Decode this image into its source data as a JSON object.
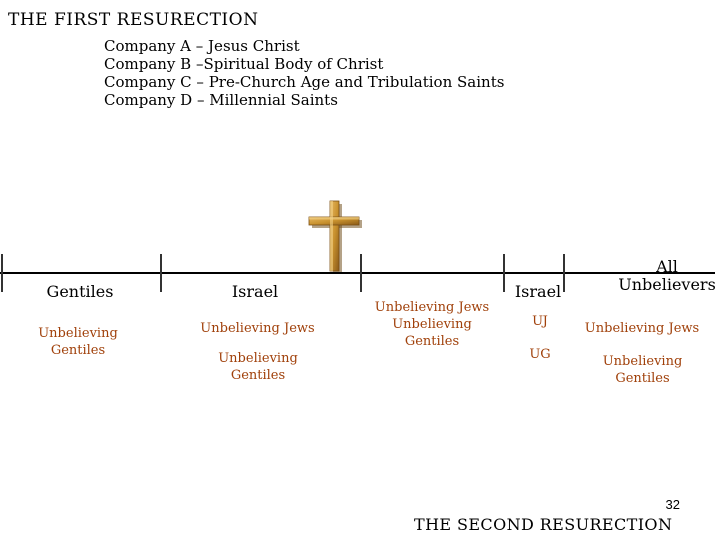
{
  "header": {
    "title": "THE FIRST RESURECTION",
    "companies": [
      "Company A – Jesus Christ",
      "Company B –Spiritual Body of Christ",
      "Company C – Pre-Church Age and Tribulation Saints",
      "Company D – Millennial Saints"
    ]
  },
  "timeline": {
    "groups": [
      {
        "heading": "Gentiles",
        "items": [
          "Unbelieving Gentiles"
        ]
      },
      {
        "heading": "Israel",
        "items": [
          "Unbelieving Jews",
          "Unbelieving Gentiles"
        ]
      },
      {
        "heading": "",
        "items": [
          "Unbelieving Jews Unbelieving Gentiles"
        ]
      },
      {
        "heading": "Israel",
        "items": [
          "UJ",
          "UG"
        ]
      },
      {
        "heading": "All Unbelievers",
        "items": [
          "Unbelieving Jews",
          "Unbelieving Gentiles"
        ]
      }
    ]
  },
  "cross_icon": "cross-icon",
  "colors": {
    "accent_text": "#a0400a",
    "cross": "#c8912e"
  },
  "footer": {
    "page_number": "32",
    "title": "THE SECOND RESURECTION"
  }
}
